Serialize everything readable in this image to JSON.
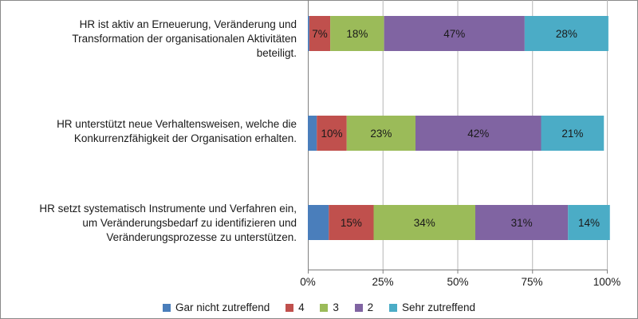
{
  "chart_data": {
    "type": "bar",
    "orientation": "horizontal",
    "stacked": true,
    "categories": [
      "HR ist aktiv an Erneuerung, Veränderung und\nTransformation der organisationalen Aktivitäten\nbeteiligt.",
      "HR unterstützt neue Verhaltensweisen, welche die\nKonkurrenzfähigkeit der Organisation erhalten.",
      "HR setzt systematisch Instrumente und Verfahren ein,\num Veränderungsbedarf zu identifizieren und\nVeränderungsprozesse zu unterstützen."
    ],
    "series": [
      {
        "name": "Gar nicht zutreffend",
        "color": "#4a7ebb",
        "values": [
          0.5,
          3,
          7
        ],
        "labels": [
          "",
          "",
          ""
        ]
      },
      {
        "name": "4",
        "color": "#c0504d",
        "values": [
          7,
          10,
          15
        ],
        "labels": [
          "7%",
          "10%",
          "15%"
        ]
      },
      {
        "name": "3",
        "color": "#9bbb59",
        "values": [
          18,
          23,
          34
        ],
        "labels": [
          "18%",
          "23%",
          "34%"
        ]
      },
      {
        "name": "2",
        "color": "#8064a2",
        "values": [
          47,
          42,
          31
        ],
        "labels": [
          "47%",
          "42%",
          "31%"
        ]
      },
      {
        "name": "Sehr zutreffend",
        "color": "#4bacc6",
        "values": [
          28,
          21,
          14
        ],
        "labels": [
          "28%",
          "21%",
          "14%"
        ]
      }
    ],
    "xlim": [
      0,
      100
    ],
    "ticks": [
      "0%",
      "25%",
      "50%",
      "75%",
      "100%"
    ],
    "tick_values": [
      0,
      25,
      50,
      75,
      100
    ],
    "grid": true,
    "legend": "bottom"
  }
}
